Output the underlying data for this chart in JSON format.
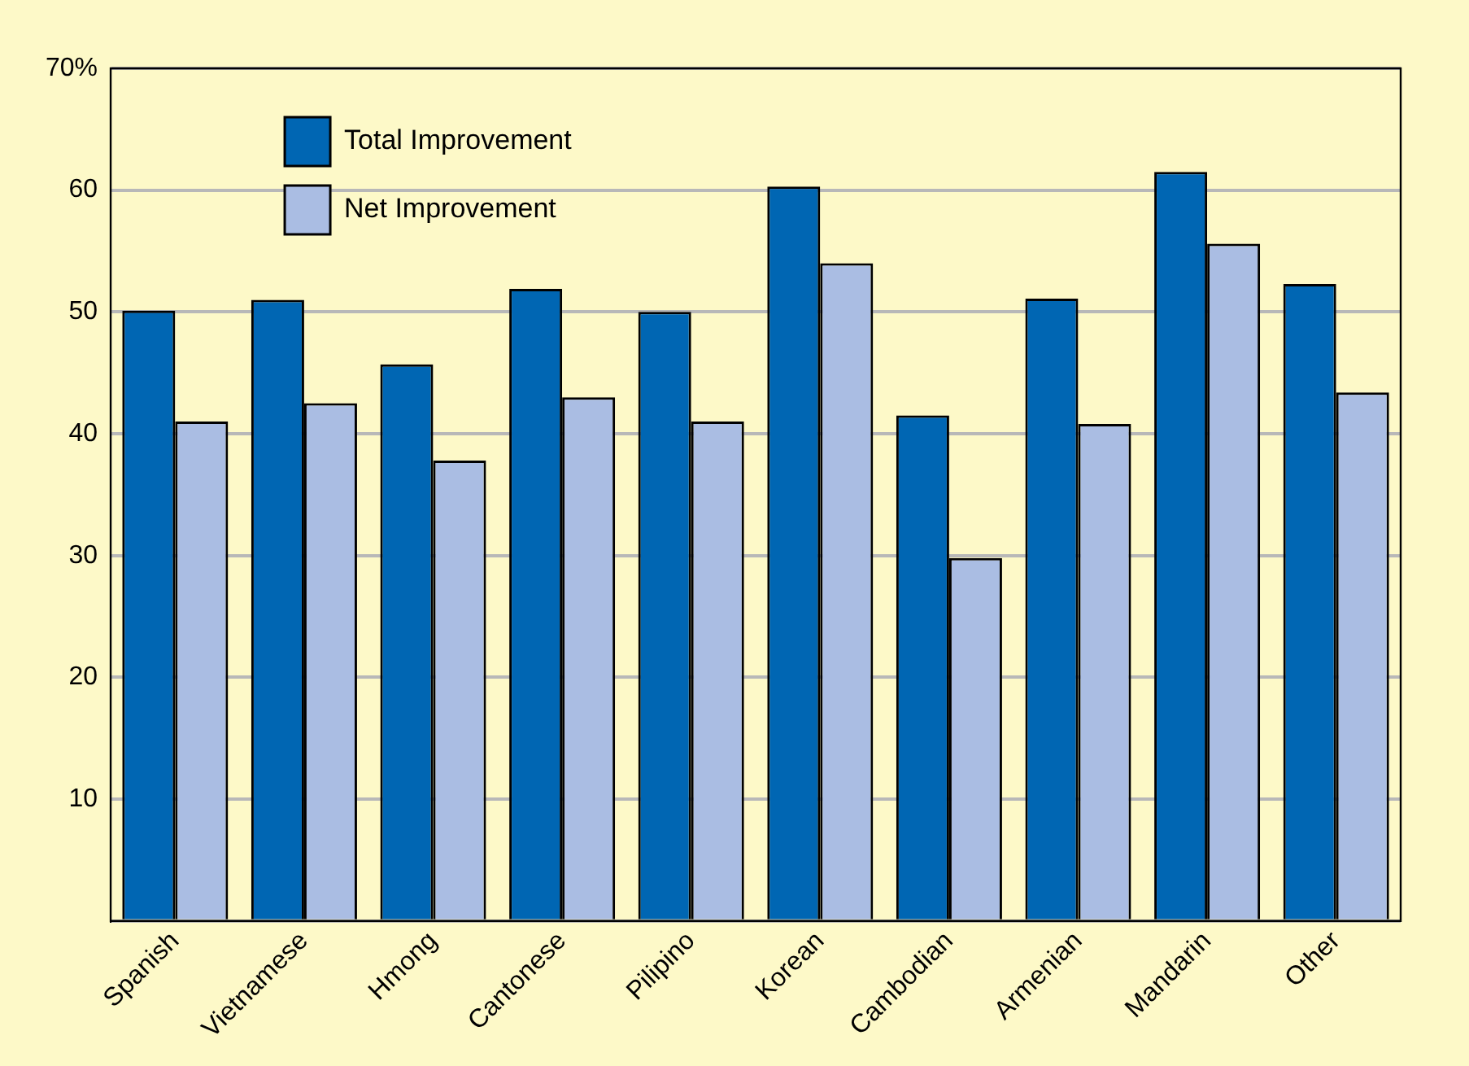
{
  "chart_data": {
    "type": "bar",
    "categories": [
      "Spanish",
      "Vietnamese",
      "Hmong",
      "Cantonese",
      "Pilipino",
      "Korean",
      "Cambodian",
      "Armenian",
      "Mandarin",
      "Other"
    ],
    "series": [
      {
        "name": "Total Improvement",
        "color": "#0066b3",
        "values": [
          50.1,
          51,
          45.7,
          51.9,
          50,
          60.3,
          41.5,
          51.1,
          61.5,
          52.3
        ]
      },
      {
        "name": "Net Improvement",
        "color": "#aabde3",
        "values": [
          41,
          42.5,
          37.8,
          43,
          41,
          54,
          29.8,
          40.8,
          55.6,
          43.4
        ]
      }
    ],
    "ylim": [
      0,
      70
    ],
    "yticks": [
      {
        "value": 0,
        "label": null
      },
      10,
      20,
      30,
      40,
      50,
      60,
      {
        "value": 70,
        "label": "70%"
      }
    ],
    "grid": "y",
    "legend": "top left"
  }
}
